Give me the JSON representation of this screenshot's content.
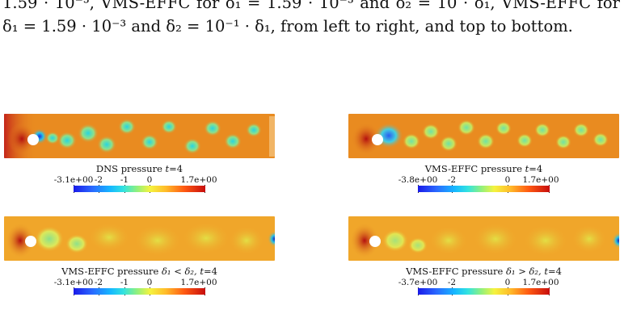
{
  "caption": {
    "line1": "1.59 · 10⁻³, VMS-EFFC for δ₁ = 1.59 · 10⁻³ and δ₂ = 10 · δ₁, VMS-EFFC for",
    "line2": "δ₁ = 1.59 · 10⁻³ and δ₂ = 10⁻¹ · δ₁, from left to right, and top to bottom."
  },
  "panels": [
    {
      "title_prefix": "DNS pressure ",
      "title_math": "t",
      "title_suffix": "=4",
      "ticks": [
        "-3.1e+00",
        "-2",
        "-1",
        "0",
        "1.7e+00"
      ]
    },
    {
      "title_prefix": "VMS-EFFC pressure ",
      "title_math": "t",
      "title_suffix": "=4",
      "ticks": [
        "-3.8e+00",
        "-2",
        "0",
        "1.7e+00"
      ]
    },
    {
      "title_prefix": "VMS-EFFC pressure ",
      "title_math": "δ₁ < δ₂, t",
      "title_suffix": "=4",
      "ticks": [
        "-3.1e+00",
        "-2",
        "-1",
        "0",
        "1.7e+00"
      ]
    },
    {
      "title_prefix": "VMS-EFFC pressure ",
      "title_math": "δ₁ > δ₂, t",
      "title_suffix": "=4",
      "ticks": [
        "-3.7e+00",
        "-2",
        "0",
        "1.7e+00"
      ]
    }
  ],
  "colors": {
    "field_base": "#e98b20",
    "cylinder": "#ffffff"
  }
}
